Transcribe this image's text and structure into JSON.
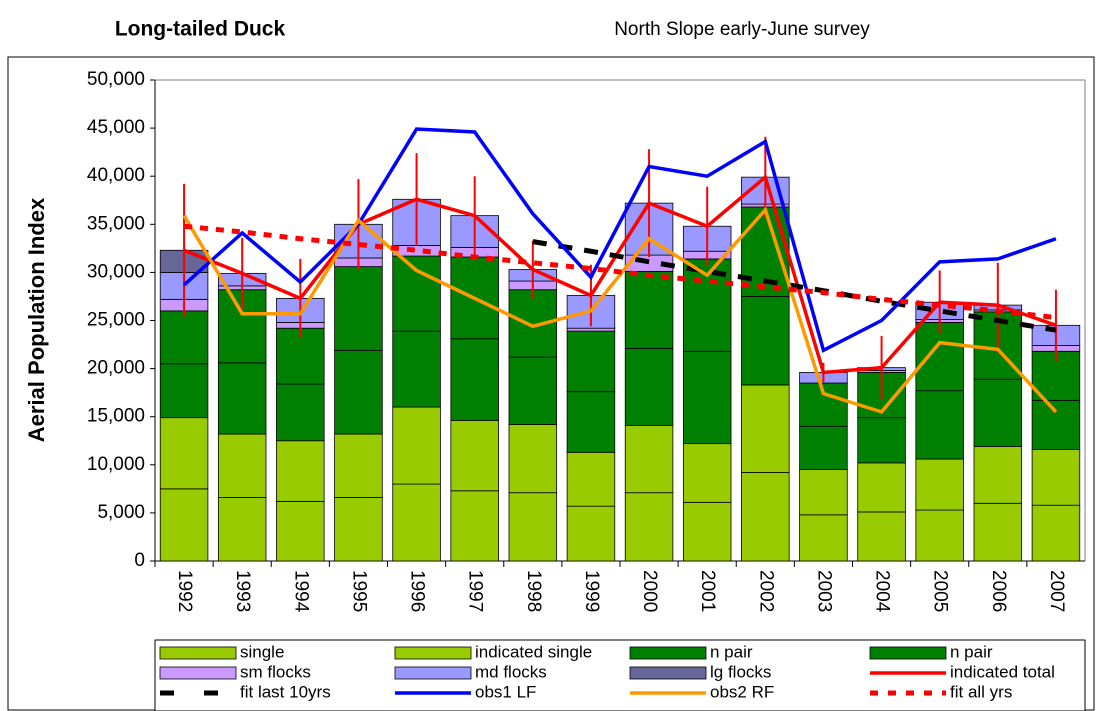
{
  "chart_data": {
    "type": "bar",
    "title": "Long-tailed Duck",
    "subtitle": "North Slope early-June survey",
    "y_label": "Aerial Population Index",
    "categories": [
      "1992",
      "1993",
      "1994",
      "1995",
      "1996",
      "1997",
      "1998",
      "1999",
      "2000",
      "2001",
      "2002",
      "2003",
      "2004",
      "2005",
      "2006",
      "2007"
    ],
    "ylim": [
      0,
      50000
    ],
    "yticks": [
      {
        "value": 0,
        "label": "0"
      },
      {
        "value": 5000,
        "label": "5,000"
      },
      {
        "value": 10000,
        "label": "10,000"
      },
      {
        "value": 15000,
        "label": "15,000"
      },
      {
        "value": 20000,
        "label": "20,000"
      },
      {
        "value": 25000,
        "label": "25,000"
      },
      {
        "value": 30000,
        "label": "30,000"
      },
      {
        "value": 35000,
        "label": "35,000"
      },
      {
        "value": 40000,
        "label": "40,000"
      },
      {
        "value": 45000,
        "label": "45,000"
      },
      {
        "value": 50000,
        "label": "50,000"
      }
    ],
    "grid": false,
    "series": [
      {
        "name": "single",
        "kind": "bar",
        "color": "#99cc00",
        "values": [
          7500,
          6600,
          6200,
          6600,
          8000,
          7300,
          7100,
          5700,
          7100,
          6100,
          9200,
          4800,
          5100,
          5300,
          6000,
          5800
        ]
      },
      {
        "name": "indicated single",
        "kind": "bar",
        "color": "#99cc00",
        "values": [
          7400,
          6600,
          6300,
          6600,
          8000,
          7300,
          7100,
          5600,
          7000,
          6100,
          9100,
          4700,
          5100,
          5300,
          5900,
          5800
        ]
      },
      {
        "name": "n pair",
        "kind": "bar",
        "color": "#008000",
        "values": [
          5600,
          7400,
          5900,
          8700,
          7900,
          8500,
          7000,
          6300,
          8000,
          9600,
          9200,
          4500,
          4700,
          7100,
          7000,
          5100
        ]
      },
      {
        "name": "n pair",
        "kind": "bar",
        "color": "#008000",
        "values": [
          5500,
          7600,
          5800,
          8700,
          7800,
          8500,
          7000,
          6300,
          8000,
          9600,
          9300,
          4500,
          4700,
          7100,
          7000,
          5100
        ]
      },
      {
        "name": "sm flocks",
        "kind": "bar",
        "color": "#cc99ff",
        "values": [
          1200,
          400,
          600,
          900,
          1100,
          1000,
          900,
          300,
          1700,
          800,
          300,
          0,
          200,
          300,
          200,
          600
        ]
      },
      {
        "name": "md flocks",
        "kind": "bar",
        "color": "#9999ff",
        "values": [
          2800,
          1300,
          2500,
          3500,
          4800,
          3300,
          1200,
          3400,
          5400,
          2600,
          2800,
          1100,
          300,
          1800,
          500,
          2100
        ]
      },
      {
        "name": "lg flocks",
        "kind": "bar",
        "color": "#666699",
        "values": [
          2300,
          0,
          0,
          0,
          0,
          0,
          0,
          0,
          0,
          0,
          0,
          0,
          0,
          0,
          0,
          0
        ]
      },
      {
        "name": "indicated total",
        "kind": "line",
        "color": "#ff0000",
        "dash": false,
        "values": [
          32300,
          29900,
          27300,
          35000,
          37600,
          35900,
          30300,
          27600,
          37200,
          34800,
          39900,
          19600,
          20100,
          26900,
          26600,
          24500
        ],
        "errors": [
          6900,
          3700,
          4100,
          4700,
          4800,
          4100,
          3000,
          3200,
          5600,
          4100,
          4200,
          1000,
          3300,
          3300,
          4400,
          3700
        ]
      },
      {
        "name": "fit last 10yrs",
        "kind": "line",
        "color": "#000000",
        "dash": true,
        "values": [
          null,
          null,
          null,
          null,
          null,
          null,
          33200,
          32200,
          31100,
          30100,
          29100,
          28100,
          27000,
          26000,
          25000,
          24000
        ]
      },
      {
        "name": "obs1 LF",
        "kind": "line",
        "color": "#0000ff",
        "dash": false,
        "values": [
          28700,
          34100,
          29000,
          35000,
          44900,
          44600,
          36100,
          29500,
          41000,
          40000,
          43600,
          21900,
          25000,
          31100,
          31400,
          33500
        ]
      },
      {
        "name": "obs2 RF",
        "kind": "line",
        "color": "#ff9900",
        "dash": false,
        "values": [
          35900,
          25700,
          25700,
          35400,
          30200,
          27300,
          24400,
          26000,
          33500,
          29700,
          36500,
          17400,
          15500,
          22700,
          22000,
          15500
        ]
      },
      {
        "name": "fit all yrs",
        "kind": "line",
        "color": "#ff0000",
        "dash": true,
        "values": [
          34800,
          34200,
          33500,
          32900,
          32300,
          31600,
          31000,
          30400,
          29700,
          29100,
          28500,
          27900,
          27200,
          26600,
          26000,
          25300
        ]
      }
    ]
  }
}
